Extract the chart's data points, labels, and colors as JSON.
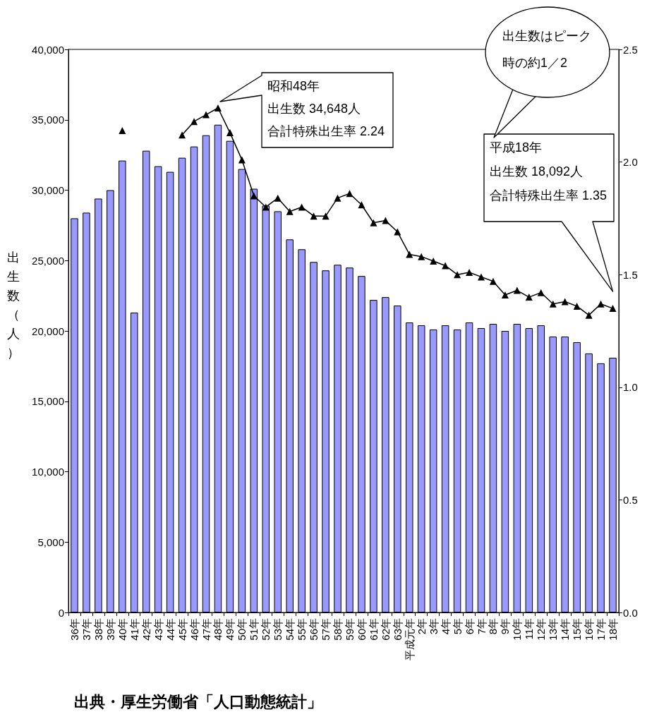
{
  "chart_data": {
    "type": "bar",
    "ylabel": "出生数（人）",
    "categories": [
      "36年",
      "37年",
      "38年",
      "39年",
      "40年",
      "41年",
      "42年",
      "43年",
      "44年",
      "45年",
      "46年",
      "47年",
      "48年",
      "49年",
      "50年",
      "51年",
      "52年",
      "53年",
      "54年",
      "55年",
      "56年",
      "57年",
      "58年",
      "59年",
      "60年",
      "61年",
      "62年",
      "63年",
      "平成元年",
      "2年",
      "3年",
      "4年",
      "5年",
      "6年",
      "7年",
      "8年",
      "9年",
      "10年",
      "11年",
      "12年",
      "13年",
      "14年",
      "15年",
      "16年",
      "17年",
      "18年"
    ],
    "series": [
      {
        "color": "#9999ff",
        "values": [
          28000,
          28400,
          29400,
          30000,
          32100,
          21300,
          32800,
          31700,
          31300,
          32300,
          33100,
          33900,
          34648,
          33500,
          31500,
          30100,
          28900,
          28500,
          26500,
          25800,
          24900,
          24300,
          24700,
          24500,
          23900,
          22200,
          22400,
          21800,
          20600,
          20400,
          20100,
          20400,
          20100,
          20600,
          20200,
          20500,
          20000,
          20500,
          20200,
          20400,
          19600,
          19600,
          19200,
          18400,
          17700,
          18092
        ]
      },
      {
        "type": "line",
        "axis": "y2",
        "color": "#000000",
        "values": [
          null,
          null,
          null,
          null,
          2.14,
          null,
          null,
          null,
          null,
          2.12,
          2.18,
          2.21,
          2.24,
          2.13,
          2.01,
          1.85,
          1.8,
          1.84,
          1.78,
          1.8,
          1.76,
          1.76,
          1.84,
          1.86,
          1.81,
          1.73,
          1.74,
          1.69,
          1.59,
          1.58,
          1.56,
          1.54,
          1.5,
          1.51,
          1.49,
          1.47,
          1.41,
          1.43,
          1.4,
          1.42,
          1.37,
          1.38,
          1.36,
          1.32,
          1.37,
          1.35
        ]
      }
    ],
    "marker": "triangle",
    "ylim": [
      0,
      40000
    ],
    "yticks": [
      0,
      {
        "value": 5000,
        "label": "5,000"
      },
      {
        "value": 10000,
        "label": "10,000"
      },
      {
        "value": 15000,
        "label": "15,000"
      },
      {
        "value": 20000,
        "label": "20,000"
      },
      {
        "value": 25000,
        "label": "25,000"
      },
      {
        "value": 30000,
        "label": "30,000"
      },
      {
        "value": 35000,
        "label": "35,000"
      },
      {
        "value": 40000,
        "label": "40,000"
      }
    ],
    "y2lim": [
      0,
      2.5
    ],
    "y2ticks": [
      {
        "value": 0,
        "label": "0.0"
      },
      0.5,
      {
        "value": 1,
        "label": "1.0"
      },
      1.5,
      {
        "value": 2,
        "label": "2.0"
      },
      2.5
    ],
    "annotations": [
      "昭和48年",
      "出生数 34,648人",
      "合計特殊出生率 2.24",
      "平成18年",
      "出生数 18,092人",
      "合計特殊出生率 1.35",
      "出生数はピーク",
      "時の約1／2",
      "出典・厚生労働省「人口動態統計」"
    ]
  }
}
